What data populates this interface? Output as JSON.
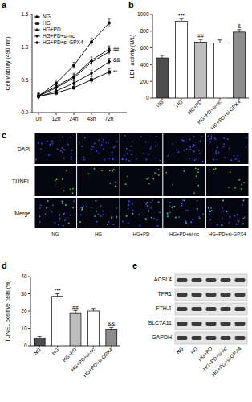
{
  "chart_data": [
    {
      "panel": "a",
      "type": "line",
      "y_label": "Cell viability (490 nm)",
      "categories": [
        "0h",
        "12h",
        "24h",
        "48h",
        "72h"
      ],
      "ylim": [
        0,
        1.5
      ],
      "yticks": [
        {
          "value": 0,
          "label": "0.0"
        },
        {
          "value": 0.5,
          "label": "0.5"
        },
        {
          "value": 1,
          "label": "1.0"
        },
        {
          "value": 1.5,
          "label": "1.5"
        }
      ],
      "legend": "top-left",
      "series": [
        {
          "name": "NG",
          "color": "#000000",
          "marker": "circle",
          "values": [
            0.25,
            0.45,
            0.72,
            1.08,
            1.37
          ],
          "errors": [
            0.04,
            0.05,
            0.05,
            0.06,
            0.06
          ]
        },
        {
          "name": "HG",
          "color": "#000000",
          "marker": "square",
          "values": [
            0.25,
            0.3,
            0.38,
            0.5,
            0.62
          ],
          "errors": [
            0.04,
            0.04,
            0.04,
            0.05,
            0.05
          ]
        },
        {
          "name": "HG+PD",
          "color": "#000000",
          "marker": "triangle-up",
          "values": [
            0.26,
            0.4,
            0.55,
            0.8,
            0.97
          ],
          "errors": [
            0.04,
            0.04,
            0.05,
            0.05,
            0.05
          ]
        },
        {
          "name": "HG+PD+si-nc",
          "color": "#000000",
          "marker": "triangle-down",
          "values": [
            0.25,
            0.38,
            0.53,
            0.77,
            0.93
          ],
          "errors": [
            0.04,
            0.04,
            0.05,
            0.05,
            0.05
          ]
        },
        {
          "name": "HG+PD+si-GPX4",
          "color": "#000000",
          "marker": "diamond",
          "values": [
            0.24,
            0.33,
            0.45,
            0.6,
            0.78
          ],
          "errors": [
            0.04,
            0.04,
            0.04,
            0.05,
            0.05
          ]
        }
      ],
      "annotations": [
        {
          "text": "##",
          "category": "72h",
          "y": 0.97
        },
        {
          "text": "&&",
          "category": "72h",
          "y": 0.8
        },
        {
          "text": "**",
          "category": "72h",
          "y": 0.62
        }
      ]
    },
    {
      "panel": "b",
      "type": "bar",
      "y_label": "LDH activity (U/L)",
      "categories": [
        "NG",
        "HG",
        "HG+PD",
        "HG+PD+si-nc",
        "HG+PD+si-GPX4"
      ],
      "values": [
        480,
        920,
        670,
        660,
        790
      ],
      "errors": [
        30,
        25,
        30,
        35,
        30
      ],
      "colors": [
        "#4d4d4d",
        "#ffffff",
        "#bdbdbd",
        "#ffffff",
        "#8c8c8c"
      ],
      "ylim": [
        0,
        1000
      ],
      "yticks": [
        0,
        200,
        400,
        600,
        800,
        1000
      ],
      "annotations": [
        {
          "text": "***",
          "category": "HG"
        },
        {
          "text": "##",
          "category": "HG+PD"
        },
        {
          "text": "&",
          "category": "HG+PD+si-GPX4"
        }
      ]
    },
    {
      "panel": "d",
      "type": "bar",
      "y_label": "TUNEL positive cells (%)",
      "categories": [
        "NG",
        "HG",
        "HG+PD",
        "HG+PD+si-nc",
        "HG+PD+si-GPX4"
      ],
      "values": [
        4.5,
        28.5,
        19,
        20,
        9.5
      ],
      "errors": [
        0.8,
        1.5,
        1.2,
        1.5,
        1.0
      ],
      "colors": [
        "#4d4d4d",
        "#ffffff",
        "#bdbdbd",
        "#ffffff",
        "#8c8c8c"
      ],
      "ylim": [
        0,
        40
      ],
      "yticks": [
        0,
        10,
        20,
        30,
        40
      ],
      "annotations": [
        {
          "text": "***",
          "category": "HG"
        },
        {
          "text": "##",
          "category": "HG+PD"
        },
        {
          "text": "&&",
          "category": "HG+PD+si-GPX4"
        }
      ]
    }
  ],
  "images": {
    "panel": "c",
    "rows": [
      "DAPI",
      "TUNEL",
      "Merge"
    ],
    "columns": [
      "NG",
      "HG",
      "HG+PD",
      "HG+PD+si-nc",
      "HG+PD+si-GPX4"
    ]
  },
  "blot": {
    "panel": "e",
    "rows": [
      "ACSL4",
      "TFR1",
      "FTH-1",
      "SLC7A11",
      "GAPDH"
    ],
    "columns": [
      "NG",
      "HG",
      "HG+PD",
      "HG+PD+si-nc",
      "HG+PD+si-GPX4"
    ]
  }
}
